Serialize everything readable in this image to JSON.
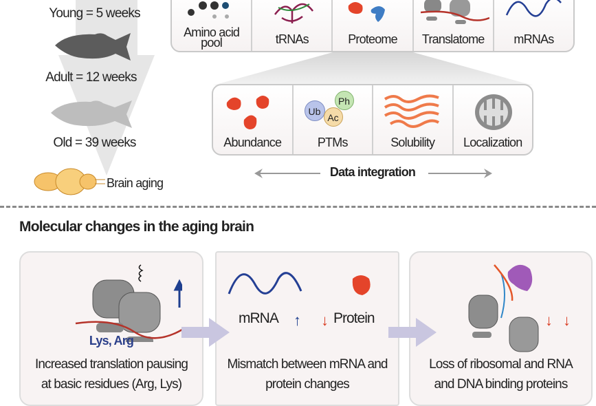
{
  "timeline": {
    "young": "Young = 5 weeks",
    "adult": "Adult = 12 weeks",
    "old": "Old = 39 weeks",
    "brain": "Brain aging"
  },
  "omics": [
    {
      "label": "Amino acid pool"
    },
    {
      "label": "tRNAs"
    },
    {
      "label": "Proteome"
    },
    {
      "label": "Translatome"
    },
    {
      "label": "mRNAs"
    }
  ],
  "proteome_layers": [
    {
      "label": "Abundance"
    },
    {
      "label": "PTMs"
    },
    {
      "label": "Solubility"
    },
    {
      "label": "Localization"
    }
  ],
  "ptm_badges": {
    "ub": "Ub",
    "ph": "Ph",
    "ac": "Ac"
  },
  "integration": "Data integration",
  "section_title": "Molecular changes in the aging brain",
  "panels": [
    {
      "tag": "Lys, Arg",
      "line1": "Increased translation pausing",
      "line2": "at basic residues (Arg, Lys)"
    },
    {
      "mrna": "mRNA",
      "protein": "Protein",
      "line1": "Mismatch between mRNA and",
      "line2": "protein changes"
    },
    {
      "line1": "Loss of ribosomal and RNA",
      "line2": "and DNA binding proteins"
    }
  ],
  "colors": {
    "up_arrow": "#1f3f8f",
    "down_arrow": "#d9391f",
    "ribosome": "#8c8c8c",
    "mrna_wave": "#243f94",
    "protein": "#e4442a",
    "flow_arrow": "#c9c6e0"
  }
}
